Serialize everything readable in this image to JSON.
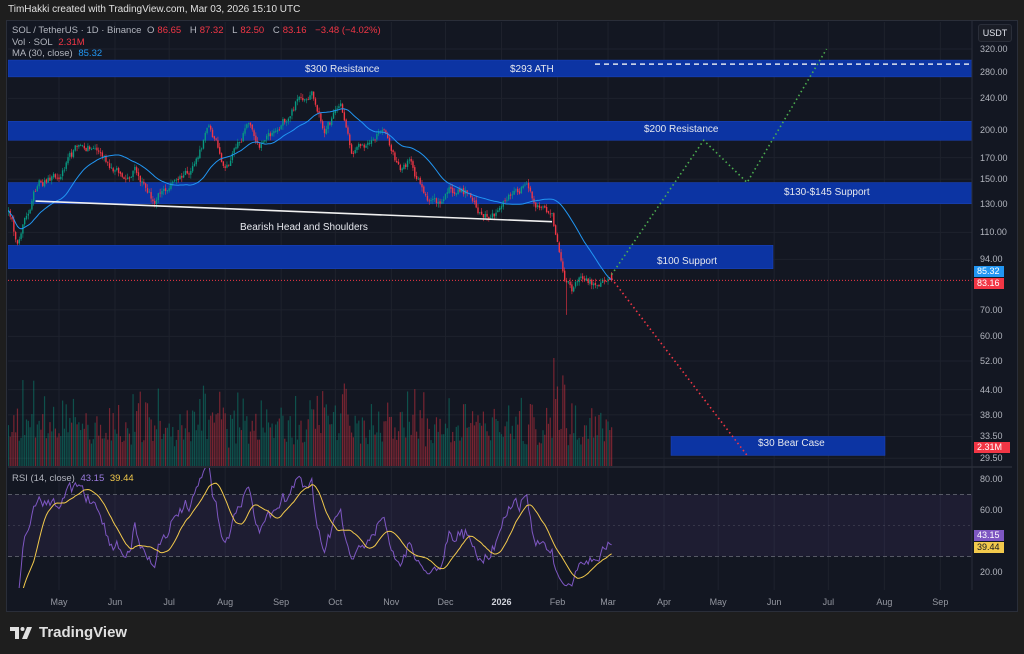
{
  "attribution": "TimHakki created with TradingView.com, Mar 03, 2026 15:10 UTC",
  "legend": {
    "symbol": "SOL / TetherUS · 1D · Binance",
    "open_label": "O",
    "open": "86.65",
    "high_label": "H",
    "high": "87.32",
    "low_label": "L",
    "low": "82.50",
    "close_label": "C",
    "close": "83.16",
    "change": "−3.48 (−4.02%)",
    "volume_label": "Vol · SOL",
    "volume": "2.31M",
    "ma_label": "MA (30, close)",
    "ma_value": "85.32",
    "rsi_label": "RSI (14, close)",
    "rsi_value": "43.15",
    "rsi_ma_value": "39.44"
  },
  "currency_button": "USDT",
  "price_axis": [
    "320.00",
    "280.00",
    "240.00",
    "200.00",
    "170.00",
    "150.00",
    "130.00",
    "110.00",
    "94.00",
    "70.00",
    "60.00",
    "52.00",
    "44.00",
    "38.00",
    "33.50",
    "29.50"
  ],
  "rsi_axis": [
    "80.00",
    "60.00",
    "20.00"
  ],
  "price_tags": {
    "ma": "85.32",
    "close": "83.16",
    "volume": "2.31M",
    "rsi": "43.15",
    "rsi_ma": "39.44"
  },
  "time_axis": [
    "May",
    "Jun",
    "Jul",
    "Aug",
    "Sep",
    "Oct",
    "Nov",
    "Dec",
    "2026",
    "Feb",
    "Mar",
    "Apr",
    "May",
    "Jun",
    "Jul",
    "Aug",
    "Sep"
  ],
  "annotations": {
    "resistance_300": "$300 Resistance",
    "ath": "$293 ATH",
    "resistance_200": "$200 Resistance",
    "support_130_145": "$130-$145 Support",
    "support_100": "$100 Support",
    "bear_case": "$30 Bear Case",
    "pattern": "Bearish Head and Shoulders"
  },
  "colors": {
    "background": "#131722",
    "zone": "#0c34a3",
    "up": "#089981",
    "down": "#f23645",
    "ma": "#2196f3",
    "rsi": "#7e57c2",
    "rsi_ma": "#f2c94c",
    "bull_path": "#4caf50",
    "bear_path": "#f23645"
  },
  "chart_data": {
    "type": "candlestick",
    "title": "SOL / TetherUS · 1D · Binance",
    "y_scale": "log",
    "ylim": [
      28,
      330
    ],
    "grid": true,
    "last_candle": {
      "date": "2026-03-03",
      "open": 86.65,
      "high": 87.32,
      "low": 82.5,
      "close": 83.16
    },
    "price_path": [
      [
        "2025-04-03",
        125
      ],
      [
        "2025-04-08",
        103
      ],
      [
        "2025-04-20",
        149
      ],
      [
        "2025-05-01",
        150
      ],
      [
        "2025-05-12",
        183
      ],
      [
        "2025-05-23",
        176
      ],
      [
        "2025-06-06",
        150
      ],
      [
        "2025-06-12",
        161
      ],
      [
        "2025-06-23",
        130
      ],
      [
        "2025-07-04",
        149
      ],
      [
        "2025-07-15",
        164
      ],
      [
        "2025-07-23",
        205
      ],
      [
        "2025-08-01",
        160
      ],
      [
        "2025-08-14",
        208
      ],
      [
        "2025-08-20",
        180
      ],
      [
        "2025-08-31",
        200
      ],
      [
        "2025-09-11",
        242
      ],
      [
        "2025-09-18",
        250
      ],
      [
        "2025-09-25",
        196
      ],
      [
        "2025-10-04",
        233
      ],
      [
        "2025-10-10",
        174
      ],
      [
        "2025-10-20",
        185
      ],
      [
        "2025-10-28",
        200
      ],
      [
        "2025-11-06",
        158
      ],
      [
        "2025-11-11",
        168
      ],
      [
        "2025-11-19",
        138
      ],
      [
        "2025-11-28",
        130
      ],
      [
        "2025-12-03",
        143
      ],
      [
        "2025-12-14",
        138
      ],
      [
        "2025-12-19",
        123
      ],
      [
        "2025-12-30",
        125
      ],
      [
        "2026-01-08",
        140
      ],
      [
        "2026-01-15",
        146
      ],
      [
        "2026-01-22",
        127
      ],
      [
        "2026-01-29",
        123
      ],
      [
        "2026-02-02",
        98
      ],
      [
        "2026-02-05",
        83
      ],
      [
        "2026-02-09",
        78
      ],
      [
        "2026-02-14",
        85
      ],
      [
        "2026-02-22",
        81
      ],
      [
        "2026-03-03",
        83.16
      ]
    ],
    "zones": [
      {
        "label": "$300 Resistance",
        "low": 272,
        "high": 300
      },
      {
        "label": "$200 Resistance",
        "low": 188,
        "high": 210
      },
      {
        "label": "$130-$145 Support",
        "low": 130,
        "high": 147
      },
      {
        "label": "$100 Support",
        "low": 89,
        "high": 102
      },
      {
        "label": "$30 Bear Case",
        "low": 30,
        "high": 33.5
      }
    ],
    "ath_line": 293,
    "neckline": [
      [
        "2025-04-18",
        132
      ],
      [
        "2026-01-29",
        117
      ]
    ],
    "bull_projection": [
      [
        "2026-03-03",
        86
      ],
      [
        "2026-04-23",
        188
      ],
      [
        "2026-05-17",
        147
      ],
      [
        "2026-06-30",
        320
      ]
    ],
    "bear_projection": [
      [
        "2026-03-03",
        84
      ],
      [
        "2026-05-17",
        30
      ]
    ],
    "ma_period": 30,
    "rsi_period": 14,
    "rsi_levels": [
      70,
      50,
      30
    ]
  }
}
